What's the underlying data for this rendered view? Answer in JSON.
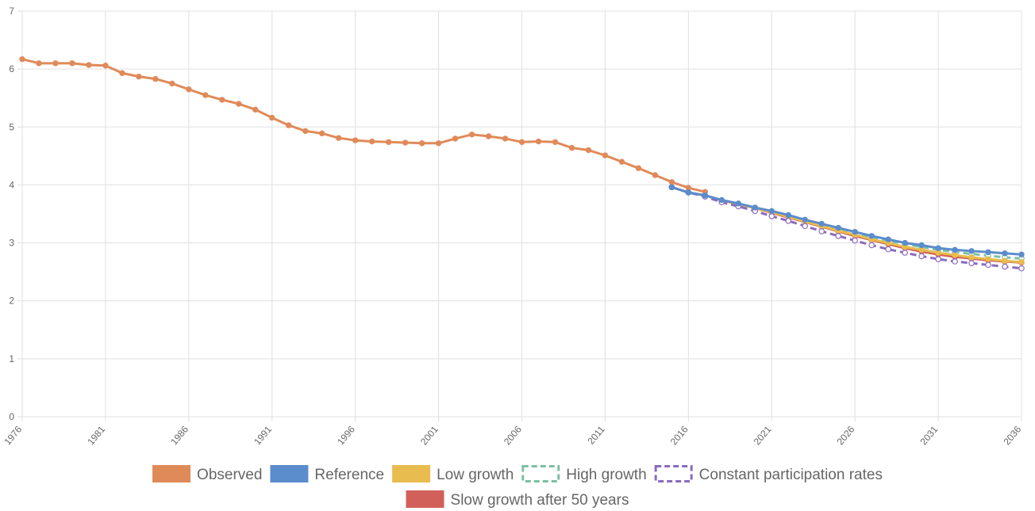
{
  "chart_data": {
    "type": "line",
    "ylim": [
      0,
      7
    ],
    "yticks": [
      "0",
      "1",
      "2",
      "3",
      "4",
      "5",
      "6",
      "7"
    ],
    "xlim": [
      1976,
      2036
    ],
    "xticks": [
      "1976",
      "1981",
      "1986",
      "1991",
      "1996",
      "2001",
      "2006",
      "2011",
      "2016",
      "2021",
      "2026",
      "2031",
      "2036"
    ],
    "grid": true,
    "legend_position": "bottom",
    "series": [
      {
        "name": "Observed",
        "color": "#e08a5a",
        "style": "solid",
        "x": [
          1976,
          1977,
          1978,
          1979,
          1980,
          1981,
          1982,
          1983,
          1984,
          1985,
          1986,
          1987,
          1988,
          1989,
          1990,
          1991,
          1992,
          1993,
          1994,
          1995,
          1996,
          1997,
          1998,
          1999,
          2000,
          2001,
          2002,
          2003,
          2004,
          2005,
          2006,
          2007,
          2008,
          2009,
          2010,
          2011,
          2012,
          2013,
          2014,
          2015,
          2016,
          2017
        ],
        "y": [
          6.17,
          6.1,
          6.1,
          6.1,
          6.07,
          6.06,
          5.93,
          5.87,
          5.83,
          5.75,
          5.65,
          5.55,
          5.47,
          5.4,
          5.3,
          5.16,
          5.03,
          4.93,
          4.89,
          4.81,
          4.77,
          4.75,
          4.74,
          4.73,
          4.72,
          4.72,
          4.8,
          4.87,
          4.84,
          4.8,
          4.74,
          4.75,
          4.74,
          4.64,
          4.6,
          4.51,
          4.4,
          4.29,
          4.17,
          4.05,
          3.95,
          3.88
        ]
      },
      {
        "name": "Reference",
        "color": "#5b8ccc",
        "style": "solid",
        "x": [
          2015,
          2016,
          2017,
          2018,
          2019,
          2020,
          2021,
          2022,
          2023,
          2024,
          2025,
          2026,
          2027,
          2028,
          2029,
          2030,
          2031,
          2032,
          2033,
          2034,
          2035,
          2036
        ],
        "y": [
          3.96,
          3.87,
          3.82,
          3.74,
          3.68,
          3.61,
          3.55,
          3.48,
          3.4,
          3.33,
          3.26,
          3.19,
          3.12,
          3.06,
          3.0,
          2.96,
          2.91,
          2.88,
          2.86,
          2.84,
          2.82,
          2.8
        ]
      },
      {
        "name": "Low growth",
        "color": "#e8bc4e",
        "style": "solid",
        "x": [
          2015,
          2016,
          2017,
          2018,
          2019,
          2020,
          2021,
          2022,
          2023,
          2024,
          2025,
          2026,
          2027,
          2028,
          2029,
          2030,
          2031,
          2032,
          2033,
          2034,
          2035,
          2036
        ],
        "y": [
          3.96,
          3.87,
          3.82,
          3.73,
          3.67,
          3.6,
          3.53,
          3.45,
          3.37,
          3.29,
          3.21,
          3.14,
          3.06,
          3.0,
          2.93,
          2.88,
          2.83,
          2.79,
          2.75,
          2.72,
          2.69,
          2.67
        ]
      },
      {
        "name": "High growth",
        "color": "#7cbfa3",
        "style": "dashed",
        "x": [
          2015,
          2016,
          2017,
          2018,
          2019,
          2020,
          2021,
          2022,
          2023,
          2024,
          2025,
          2026,
          2027,
          2028,
          2029,
          2030,
          2031,
          2032,
          2033,
          2034,
          2035,
          2036
        ],
        "y": [
          3.96,
          3.87,
          3.82,
          3.73,
          3.67,
          3.6,
          3.54,
          3.47,
          3.39,
          3.32,
          3.25,
          3.17,
          3.1,
          3.04,
          2.98,
          2.93,
          2.88,
          2.84,
          2.81,
          2.78,
          2.75,
          2.73
        ]
      },
      {
        "name": "Constant participation rates",
        "color": "#8a6bbf",
        "style": "dashed",
        "x": [
          2015,
          2016,
          2017,
          2018,
          2019,
          2020,
          2021,
          2022,
          2023,
          2024,
          2025,
          2026,
          2027,
          2028,
          2029,
          2030,
          2031,
          2032,
          2033,
          2034,
          2035,
          2036
        ],
        "y": [
          3.96,
          3.87,
          3.8,
          3.7,
          3.63,
          3.55,
          3.46,
          3.38,
          3.29,
          3.2,
          3.12,
          3.04,
          2.96,
          2.89,
          2.83,
          2.77,
          2.72,
          2.68,
          2.65,
          2.62,
          2.59,
          2.56
        ]
      },
      {
        "name": "Slow growth after 50 years",
        "color": "#d1605a",
        "style": "solid",
        "x": [
          2015,
          2016,
          2017,
          2018,
          2019,
          2020,
          2021,
          2022,
          2023,
          2024,
          2025,
          2026,
          2027,
          2028,
          2029,
          2030,
          2031,
          2032,
          2033,
          2034,
          2035,
          2036
        ],
        "y": [
          3.96,
          3.87,
          3.82,
          3.73,
          3.67,
          3.6,
          3.52,
          3.44,
          3.36,
          3.28,
          3.2,
          3.12,
          3.05,
          2.98,
          2.91,
          2.85,
          2.8,
          2.76,
          2.73,
          2.7,
          2.68,
          2.66
        ]
      }
    ]
  }
}
